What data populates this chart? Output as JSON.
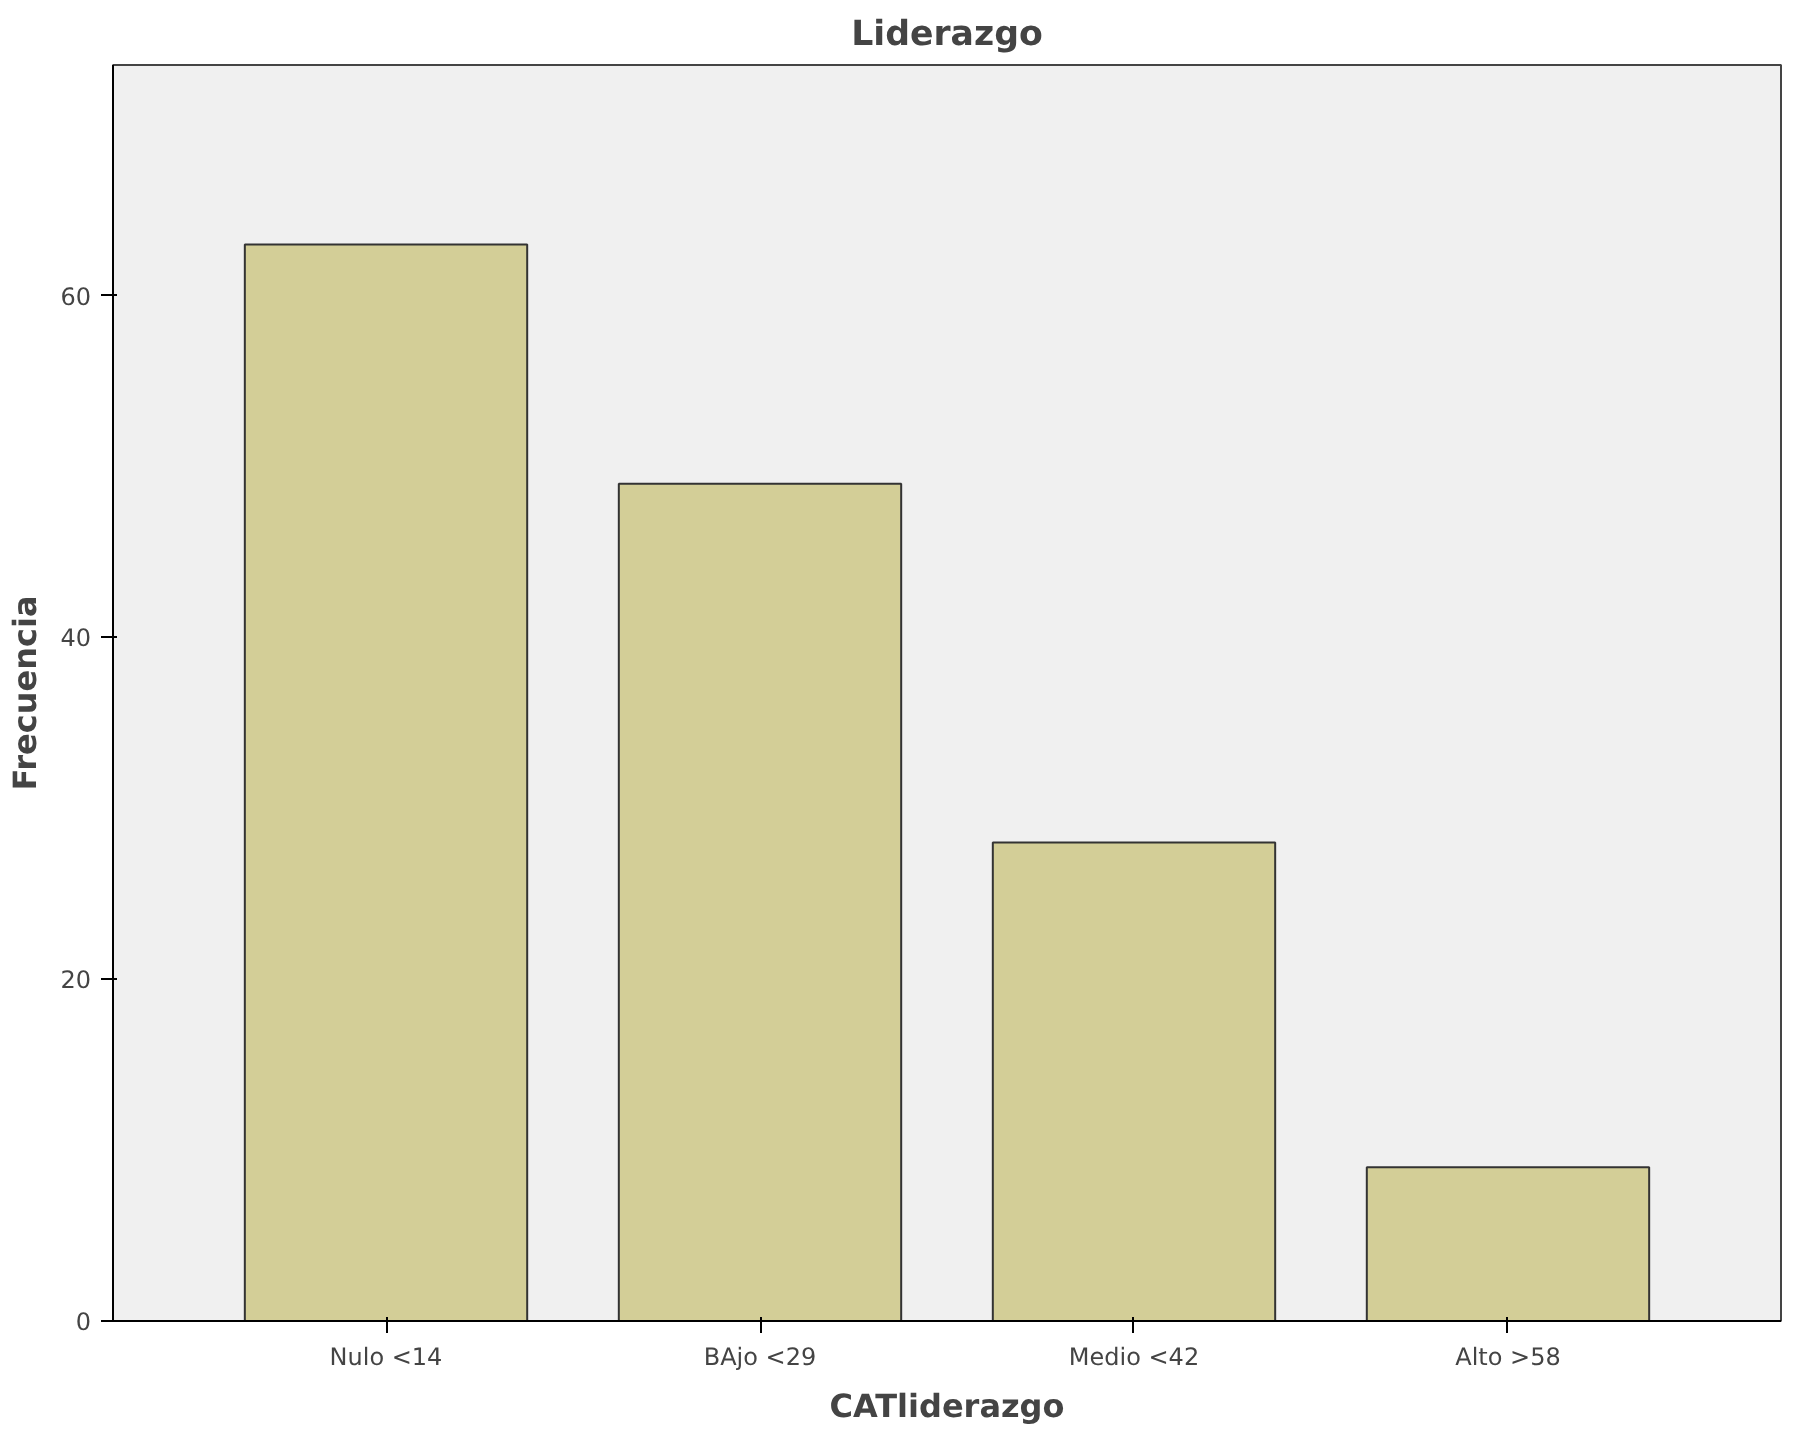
{
  "chart_data": {
    "type": "bar",
    "title": "Liderazgo",
    "xlabel": "CATliderazgo",
    "ylabel": "Frecuencia",
    "categories": [
      "Nulo <14",
      "BAjo <29",
      "Medio <42",
      "Alto >58"
    ],
    "values": [
      63,
      49,
      28,
      9
    ],
    "color": "#d3ce97",
    "ylim": [
      0,
      73.5
    ],
    "yticks": [
      0,
      20,
      40,
      60
    ],
    "grid": false
  }
}
